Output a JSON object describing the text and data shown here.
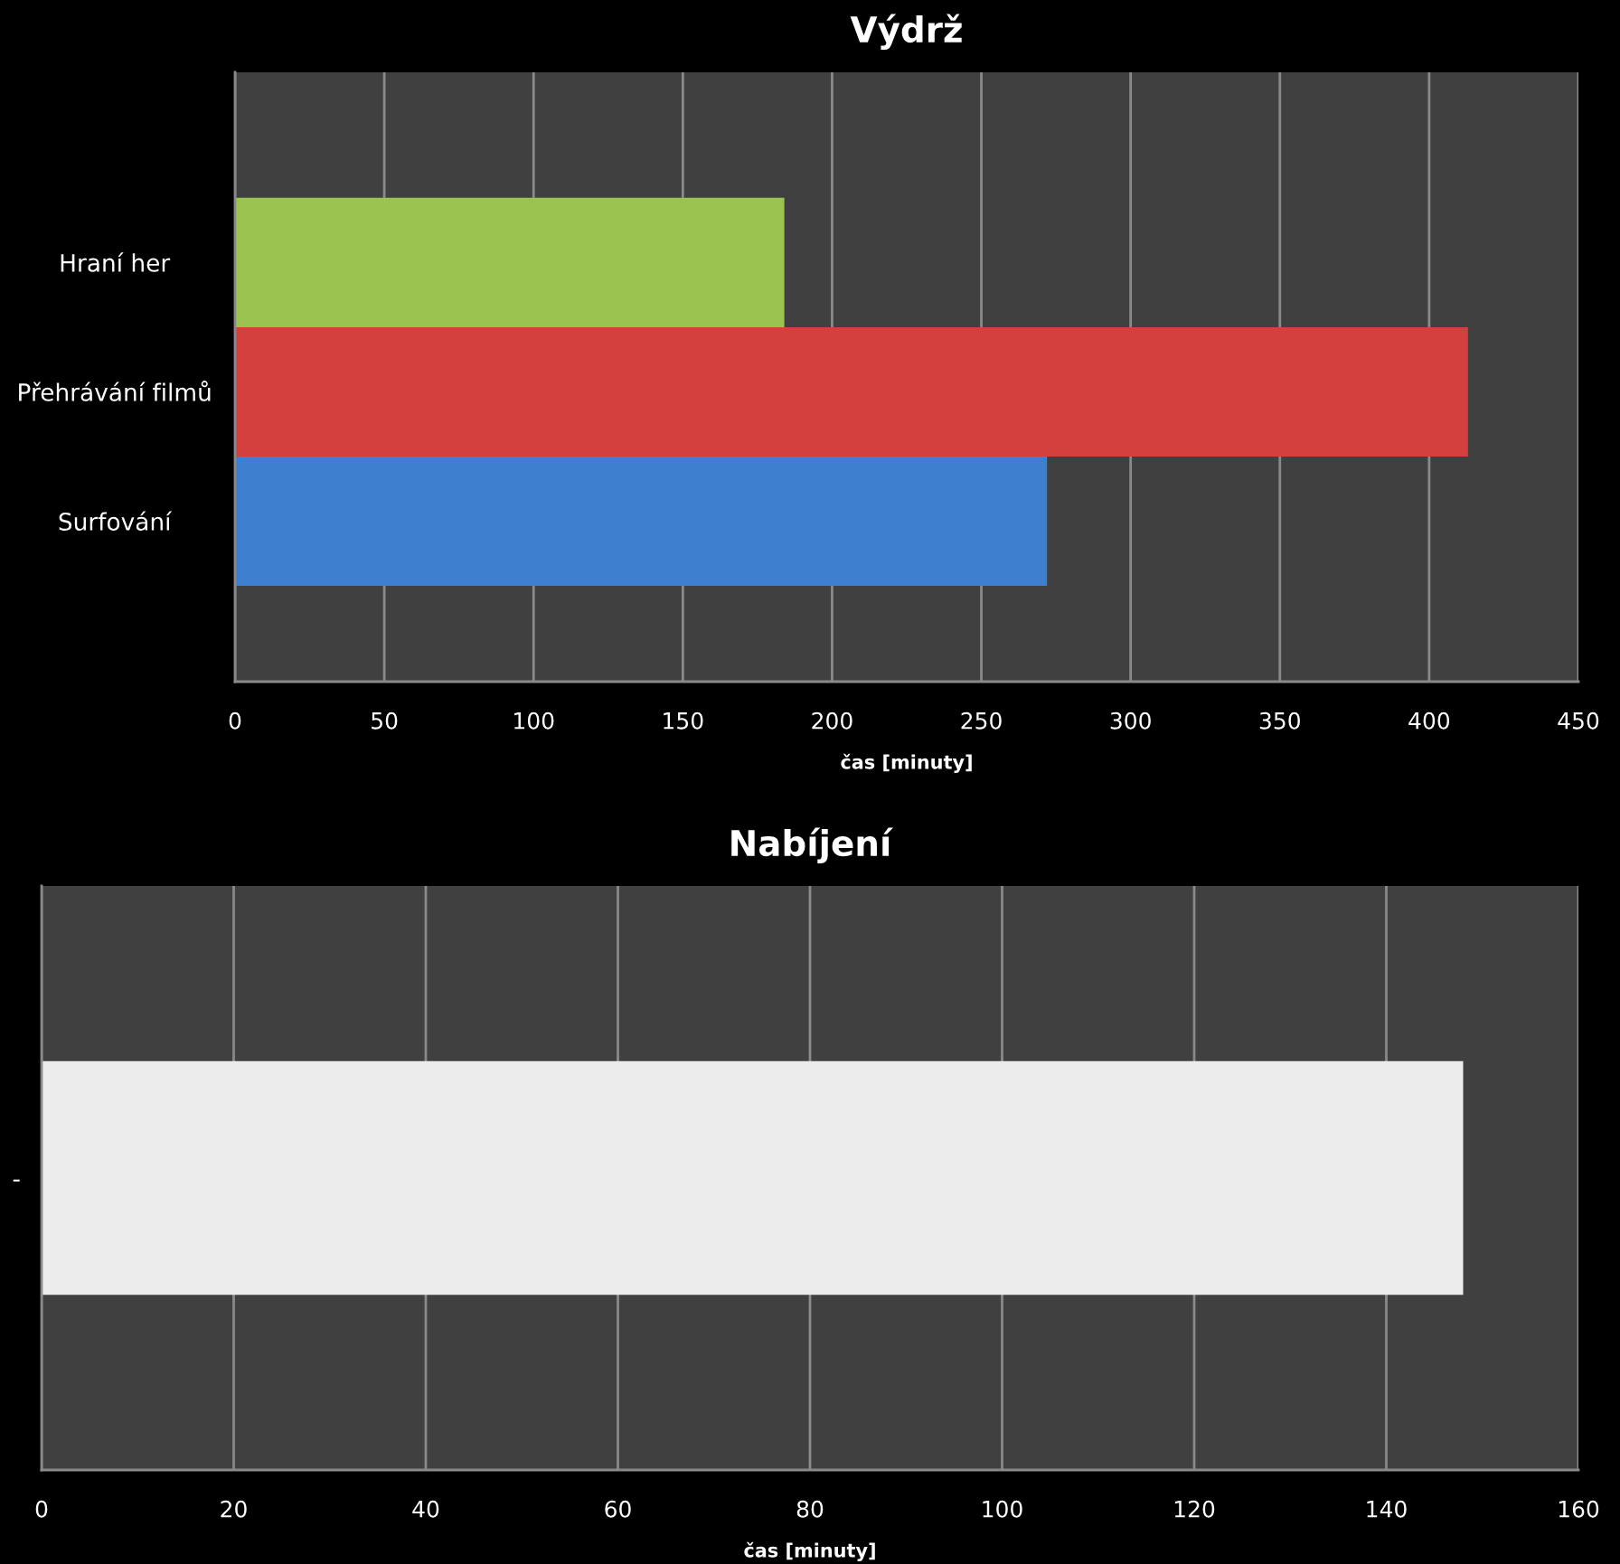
{
  "chart_data": [
    {
      "type": "bar",
      "orientation": "horizontal",
      "title": "Výdrž",
      "xlabel": "čas [minuty]",
      "categories": [
        "Hraní her",
        "Přehrávání filmů",
        "Surfování"
      ],
      "values": [
        184,
        413,
        272
      ],
      "colors": [
        "#9bc34f",
        "#d4403e",
        "#3f7fcf"
      ],
      "xlim": [
        0,
        450
      ],
      "xticks": [
        0,
        50,
        100,
        150,
        200,
        250,
        300,
        350,
        400,
        450
      ],
      "grid": "x"
    },
    {
      "type": "bar",
      "orientation": "horizontal",
      "title": "Nabíjení",
      "xlabel": "čas [minuty]",
      "categories": [
        "-"
      ],
      "values": [
        148
      ],
      "colors": [
        "#ececec"
      ],
      "xlim": [
        0,
        160
      ],
      "xticks": [
        0,
        20,
        40,
        60,
        80,
        100,
        120,
        140,
        160
      ],
      "grid": "x"
    }
  ]
}
